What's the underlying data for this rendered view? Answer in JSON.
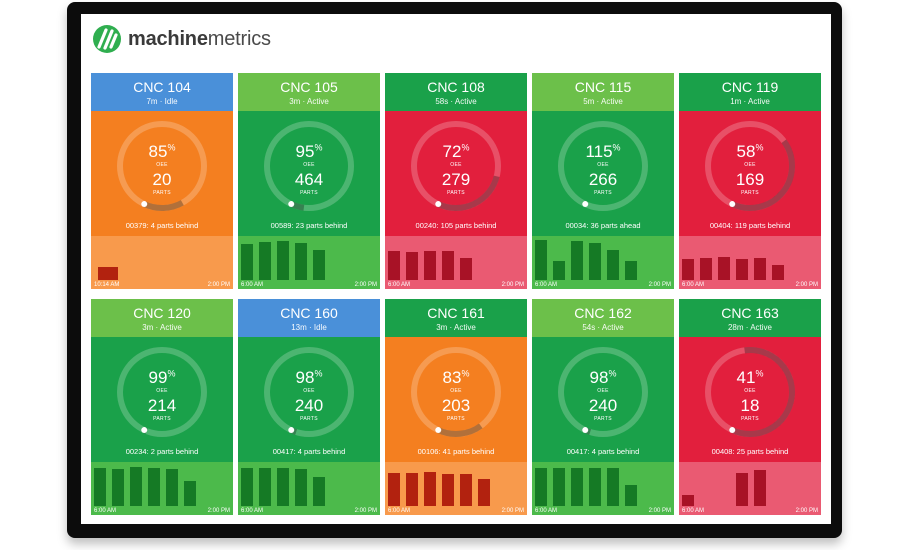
{
  "brand": {
    "logo_bold": "machine",
    "logo_light": "metrics"
  },
  "colors": {
    "blue_header": "#4a90d9",
    "green_light": "#6cc04a",
    "green": "#1aa14a",
    "orange": "#f47f20",
    "red": "#e21f3d"
  },
  "machines": [
    {
      "name": "CNC 104",
      "status": "7m · Idle",
      "header_color": "#4a90d9",
      "body_color": "#f47f20",
      "chart_color": "#f89a4c",
      "bar_color": "#b2220f",
      "oee": "85",
      "oee_pct": 0.85,
      "parts": "20",
      "status_line": "00379: 4 parts behind",
      "time_start": "10:14 AM",
      "time_end": "2:00 PM",
      "bars": [
        0.3,
        0,
        0,
        0,
        0,
        0,
        0,
        0
      ]
    },
    {
      "name": "CNC 105",
      "status": "3m · Active",
      "header_color": "#6cc04a",
      "body_color": "#1aa14a",
      "chart_color": "#4cba4b",
      "bar_color": "#157a25",
      "oee": "95",
      "oee_pct": 0.95,
      "parts": "464",
      "status_line": "00589: 23 parts behind",
      "time_start": "6:00 AM",
      "time_end": "2:00 PM",
      "bars": [
        0.85,
        0.9,
        0.92,
        0.88,
        0.72,
        0,
        0,
        0
      ]
    },
    {
      "name": "CNC 108",
      "status": "58s · Active",
      "header_color": "#1aa14a",
      "body_color": "#e21f3d",
      "chart_color": "#ea5a72",
      "bar_color": "#a81226",
      "oee": "72",
      "oee_pct": 0.72,
      "parts": "279",
      "status_line": "00240: 105 parts behind",
      "time_start": "6:00 AM",
      "time_end": "2:00 PM",
      "bars": [
        0.68,
        0.66,
        0.7,
        0.7,
        0.52,
        0,
        0,
        0
      ]
    },
    {
      "name": "CNC 115",
      "status": "5m · Active",
      "header_color": "#6cc04a",
      "body_color": "#1aa14a",
      "chart_color": "#4cba4b",
      "bar_color": "#157a25",
      "oee": "115",
      "oee_pct": 1.0,
      "parts": "266",
      "status_line": "00034: 36 parts ahead",
      "time_start": "6:00 AM",
      "time_end": "2:00 PM",
      "bars": [
        0.95,
        0.45,
        0.92,
        0.88,
        0.72,
        0.45,
        0,
        0
      ]
    },
    {
      "name": "CNC 119",
      "status": "1m · Active",
      "header_color": "#1aa14a",
      "body_color": "#e21f3d",
      "chart_color": "#ea5a72",
      "bar_color": "#a81226",
      "oee": "58",
      "oee_pct": 0.58,
      "parts": "169",
      "status_line": "00404: 119 parts behind",
      "time_start": "6:00 AM",
      "time_end": "2:00 PM",
      "bars": [
        0.5,
        0.52,
        0.55,
        0.5,
        0.52,
        0.35,
        0,
        0
      ]
    },
    {
      "name": "CNC 120",
      "status": "3m · Active",
      "header_color": "#6cc04a",
      "body_color": "#1aa14a",
      "chart_color": "#4cba4b",
      "bar_color": "#157a25",
      "oee": "99",
      "oee_pct": 0.99,
      "parts": "214",
      "status_line": "00234: 2 parts behind",
      "time_start": "6:00 AM",
      "time_end": "2:00 PM",
      "bars": [
        0.9,
        0.88,
        0.92,
        0.9,
        0.88,
        0.6,
        0,
        0
      ]
    },
    {
      "name": "CNC 160",
      "status": "13m · Idle",
      "header_color": "#4a90d9",
      "body_color": "#1aa14a",
      "chart_color": "#4cba4b",
      "bar_color": "#157a25",
      "oee": "98",
      "oee_pct": 0.98,
      "parts": "240",
      "status_line": "00417: 4 parts behind",
      "time_start": "6:00 AM",
      "time_end": "2:00 PM",
      "bars": [
        0.9,
        0.9,
        0.9,
        0.88,
        0.7,
        0,
        0,
        0
      ]
    },
    {
      "name": "CNC 161",
      "status": "3m · Active",
      "header_color": "#1aa14a",
      "body_color": "#f47f20",
      "chart_color": "#f89a4c",
      "bar_color": "#b2220f",
      "oee": "83",
      "oee_pct": 0.83,
      "parts": "203",
      "status_line": "00106: 41 parts behind",
      "time_start": "6:00 AM",
      "time_end": "2:00 PM",
      "bars": [
        0.78,
        0.78,
        0.8,
        0.76,
        0.76,
        0.65,
        0,
        0
      ]
    },
    {
      "name": "CNC 162",
      "status": "54s · Active",
      "header_color": "#6cc04a",
      "body_color": "#1aa14a",
      "chart_color": "#4cba4b",
      "bar_color": "#157a25",
      "oee": "98",
      "oee_pct": 0.98,
      "parts": "240",
      "status_line": "00417: 4 parts behind",
      "time_start": "6:00 AM",
      "time_end": "2:00 PM",
      "bars": [
        0.9,
        0.9,
        0.9,
        0.9,
        0.9,
        0.5,
        0,
        0
      ]
    },
    {
      "name": "CNC 163",
      "status": "28m · Active",
      "header_color": "#1aa14a",
      "body_color": "#e21f3d",
      "chart_color": "#ea5a72",
      "bar_color": "#a81226",
      "oee": "41",
      "oee_pct": 0.41,
      "parts": "18",
      "status_line": "00408: 25 parts behind",
      "time_start": "6:00 AM",
      "time_end": "2:00 PM",
      "bars": [
        0.25,
        0,
        0,
        0.78,
        0.85,
        0,
        0,
        0
      ]
    }
  ]
}
